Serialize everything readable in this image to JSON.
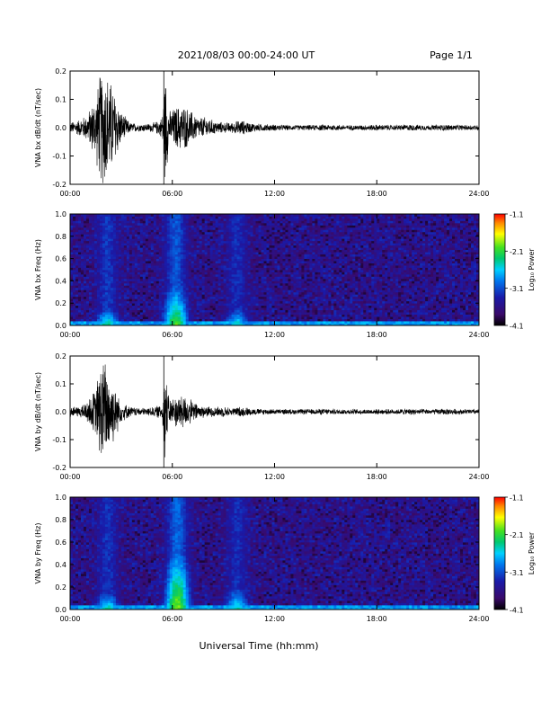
{
  "header": {
    "date_range": "2021/08/03  00:00-24:00 UT",
    "page": "Page 1/1"
  },
  "footer": {
    "xlabel": "Universal Time (hh:mm)"
  },
  "chart_data": [
    {
      "type": "line",
      "ylabel": "VNA bx dB/dt (nT/sec)",
      "xlim": [
        0,
        24
      ],
      "ylim": [
        -0.2,
        0.2
      ],
      "xticks": [
        "00:00",
        "06:00",
        "12:00",
        "18:00",
        "24:00"
      ],
      "yticks": [
        "-0.2",
        "-0.1",
        "0.0",
        "0.1",
        "0.2"
      ],
      "series": [
        {
          "x": [
            0,
            0.5,
            1.0,
            1.5,
            1.8,
            2.1,
            2.4,
            3.0,
            3.5,
            4.0,
            4.5,
            5.0,
            5.4,
            5.6,
            5.8,
            6.2,
            6.6,
            7.0,
            7.5,
            8.0,
            8.5,
            9.0,
            9.5,
            10.0,
            10.5,
            11.0,
            12.0,
            13.0,
            14.0,
            15.0,
            16.0,
            17.0,
            18.0,
            19.0,
            20.0,
            21.0,
            22.0,
            23.0,
            24.0
          ],
          "amp": [
            0.02,
            0.03,
            0.05,
            0.12,
            0.22,
            0.22,
            0.18,
            0.06,
            0.02,
            0.015,
            0.015,
            0.02,
            0.04,
            0.22,
            0.06,
            0.08,
            0.09,
            0.07,
            0.04,
            0.04,
            0.025,
            0.02,
            0.02,
            0.03,
            0.02,
            0.015,
            0.012,
            0.01,
            0.01,
            0.012,
            0.01,
            0.01,
            0.012,
            0.01,
            0.012,
            0.01,
            0.012,
            0.01,
            0.01
          ]
        }
      ]
    },
    {
      "type": "heatmap",
      "ylabel": "VNA bx Freq (Hz)",
      "xlim": [
        0,
        24
      ],
      "ylim": [
        0.0,
        1.0
      ],
      "xticks": [
        "00:00",
        "06:00",
        "12:00",
        "18:00",
        "24:00"
      ],
      "yticks": [
        "0.0",
        "0.2",
        "0.4",
        "0.6",
        "0.8",
        "1.0"
      ],
      "colorbar": {
        "label": "Log₁₀ Power",
        "range": [
          -4.1,
          -1.1
        ],
        "ticks": [
          "-1.1",
          "-2.1",
          "-3.1",
          "-4.1"
        ]
      },
      "hotspots": [
        {
          "t": 2.2,
          "f_top": 0.15,
          "level": 0.55
        },
        {
          "t": 6.2,
          "f_top": 0.35,
          "level": 0.75
        },
        {
          "t": 9.8,
          "f_top": 0.15,
          "level": 0.45
        }
      ]
    },
    {
      "type": "line",
      "ylabel": "VNA by dB/dt (nT/sec)",
      "xlim": [
        0,
        24
      ],
      "ylim": [
        -0.2,
        0.2
      ],
      "xticks": [
        "00:00",
        "06:00",
        "12:00",
        "18:00",
        "24:00"
      ],
      "yticks": [
        "-0.2",
        "-0.1",
        "0.0",
        "0.1",
        "0.2"
      ],
      "series": [
        {
          "x": [
            0,
            0.5,
            1.0,
            1.5,
            1.8,
            2.1,
            2.4,
            3.0,
            3.5,
            4.0,
            4.5,
            5.0,
            5.4,
            5.6,
            5.8,
            6.2,
            6.6,
            7.0,
            7.5,
            8.0,
            8.5,
            9.0,
            9.5,
            10.0,
            10.5,
            11.0,
            12.0,
            13.0,
            14.0,
            15.0,
            16.0,
            17.0,
            18.0,
            19.0,
            20.0,
            21.0,
            22.0,
            23.0,
            24.0
          ],
          "amp": [
            0.02,
            0.02,
            0.04,
            0.09,
            0.2,
            0.2,
            0.14,
            0.04,
            0.02,
            0.015,
            0.015,
            0.02,
            0.03,
            0.2,
            0.05,
            0.06,
            0.07,
            0.05,
            0.03,
            0.02,
            0.02,
            0.02,
            0.015,
            0.02,
            0.015,
            0.012,
            0.01,
            0.01,
            0.01,
            0.012,
            0.01,
            0.01,
            0.01,
            0.01,
            0.012,
            0.01,
            0.012,
            0.01,
            0.01
          ]
        }
      ]
    },
    {
      "type": "heatmap",
      "ylabel": "VNA by Freq (Hz)",
      "xlim": [
        0,
        24
      ],
      "ylim": [
        0.0,
        1.0
      ],
      "xticks": [
        "00:00",
        "06:00",
        "12:00",
        "18:00",
        "24:00"
      ],
      "yticks": [
        "0.0",
        "0.2",
        "0.4",
        "0.6",
        "0.8",
        "1.0"
      ],
      "colorbar": {
        "label": "Log₁₀ Power",
        "range": [
          -4.1,
          -1.1
        ],
        "ticks": [
          "-1.1",
          "-2.1",
          "-3.1",
          "-4.1"
        ]
      },
      "hotspots": [
        {
          "t": 2.2,
          "f_top": 0.15,
          "level": 0.5
        },
        {
          "t": 6.3,
          "f_top": 0.5,
          "level": 0.85
        },
        {
          "t": 9.8,
          "f_top": 0.2,
          "level": 0.45
        }
      ]
    }
  ]
}
